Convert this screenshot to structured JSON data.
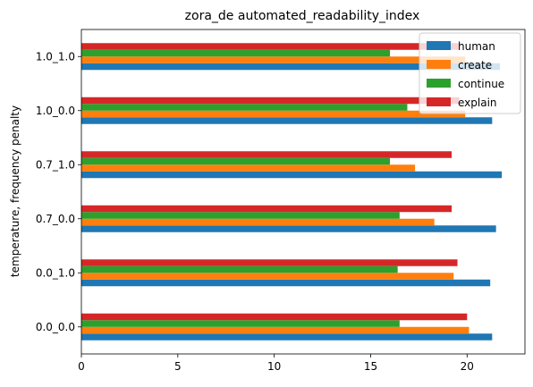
{
  "chart_data": {
    "type": "bar",
    "orientation": "horizontal",
    "title": "zora_de automated_readability_index",
    "xlabel": "",
    "ylabel": "temperature, frequency penalty",
    "categories": [
      "0.0_0.0",
      "0.0_1.0",
      "0.7_0.0",
      "0.7_1.0",
      "1.0_0.0",
      "1.0_1.0"
    ],
    "xlim": [
      0,
      23
    ],
    "xticks": [
      0,
      5,
      10,
      15,
      20
    ],
    "series": [
      {
        "name": "human",
        "color": "#1f77b4",
        "values": [
          21.3,
          21.2,
          21.5,
          21.8,
          21.3,
          21.7
        ]
      },
      {
        "name": "create",
        "color": "#ff7f0e",
        "values": [
          20.1,
          19.3,
          18.3,
          17.3,
          19.9,
          19.9
        ]
      },
      {
        "name": "continue",
        "color": "#2ca02c",
        "values": [
          16.5,
          16.4,
          16.5,
          16.0,
          16.9,
          16.0
        ]
      },
      {
        "name": "explain",
        "color": "#d62728",
        "values": [
          20.0,
          19.5,
          19.2,
          19.2,
          19.6,
          19.6
        ]
      }
    ],
    "grid": false,
    "legend_position": "top-right"
  }
}
